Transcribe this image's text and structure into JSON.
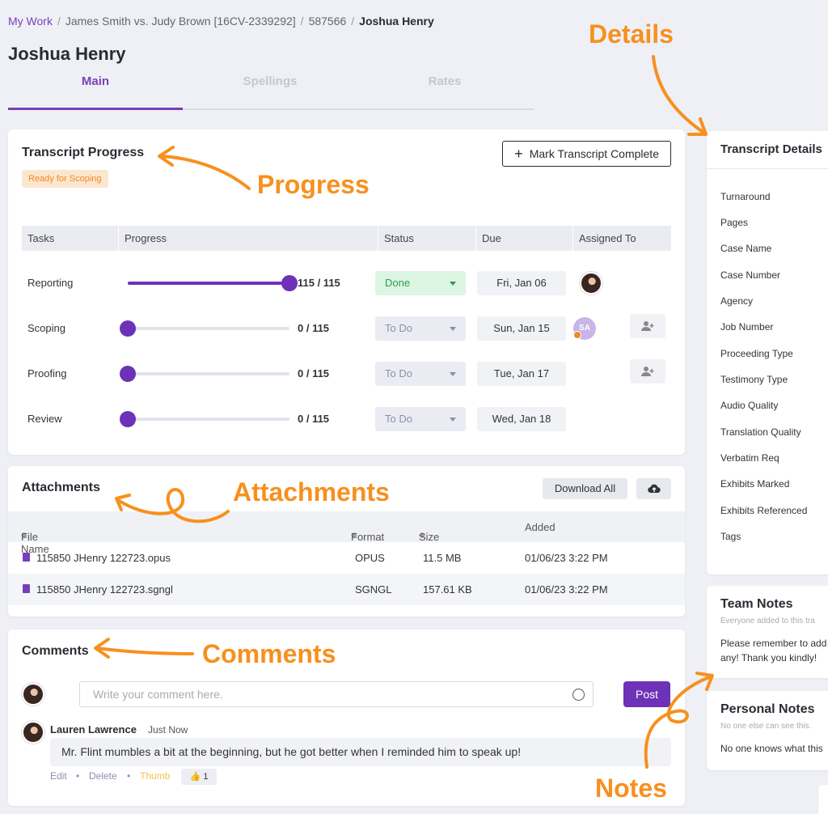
{
  "breadcrumb": {
    "items": [
      "My Work",
      "James Smith vs. Judy Brown [16CV-2339292]",
      "587566"
    ],
    "current": "Joshua Henry"
  },
  "page_title": "Joshua Henry",
  "tabs": [
    {
      "label": "Main",
      "active": true
    },
    {
      "label": "Spellings",
      "active": false
    },
    {
      "label": "Rates",
      "active": false
    }
  ],
  "progress": {
    "title": "Transcript Progress",
    "badge": "Ready for Scoping",
    "mark_complete_label": "Mark Transcript Complete",
    "columns": [
      "Tasks",
      "Progress",
      "Status",
      "Due",
      "Assigned To"
    ],
    "tasks": [
      {
        "name": "Reporting",
        "done": 115,
        "total": 115,
        "count_text": "115 / 115",
        "status": "Done",
        "due": "Fri, Jan 06",
        "assignee": "photo"
      },
      {
        "name": "Scoping",
        "done": 0,
        "total": 115,
        "count_text": "0 / 115",
        "status": "To Do",
        "due": "Sun, Jan 15",
        "assignee": "SA"
      },
      {
        "name": "Proofing",
        "done": 0,
        "total": 115,
        "count_text": "0 / 115",
        "status": "To Do",
        "due": "Tue, Jan 17",
        "assignee": ""
      },
      {
        "name": "Review",
        "done": 0,
        "total": 115,
        "count_text": "0 / 115",
        "status": "To Do",
        "due": "Wed, Jan 18",
        "assignee": ""
      }
    ]
  },
  "attachments": {
    "title": "Attachments",
    "download_all_label": "Download All",
    "columns": [
      "File Name",
      "Format",
      "Size",
      "Added"
    ],
    "files": [
      {
        "name": "115850 JHenry 122723.opus",
        "format": "OPUS",
        "size": "11.5 MB",
        "added": "01/06/23 3:22 PM"
      },
      {
        "name": "115850 JHenry 122723.sgngl",
        "format": "SGNGL",
        "size": "157.61 KB",
        "added": "01/06/23 3:22 PM"
      }
    ]
  },
  "comments": {
    "title": "Comments",
    "placeholder": "Write your comment here.",
    "post_label": "Post",
    "items": [
      {
        "author": "Lauren Lawrence",
        "time": "Just Now",
        "text": "Mr. Flint mumbles a bit at the beginning, but he got better when I reminded him to speak up!",
        "actions": {
          "edit": "Edit",
          "delete": "Delete",
          "thumb": "Thumb"
        },
        "thumb_count": "1"
      }
    ]
  },
  "details": {
    "title": "Transcript Details",
    "fields": [
      "Turnaround",
      "Pages",
      "Case Name",
      "Case Number",
      "Agency",
      "Job Number",
      "Proceeding Type",
      "Testimony Type",
      "Audio Quality",
      "Translation Quality",
      "Verbatim Req",
      "Exhibits Marked",
      "Exhibits Referenced",
      "Tags"
    ]
  },
  "team_notes": {
    "title": "Team Notes",
    "subtitle": "Everyone added to this tra",
    "line1": "Please remember to add",
    "line2": "any! Thank you kindly!"
  },
  "personal_notes": {
    "title": "Personal Notes",
    "subtitle": "No one else can see this.",
    "text": "No one knows what this"
  },
  "annotations": {
    "details": "Details",
    "progress": "Progress",
    "attachments": "Attachments",
    "comments": "Comments",
    "notes": "Notes",
    "color": "#f7901e"
  },
  "colors": {
    "accent": "#6d32b7",
    "done_bg": "#ddf5e3",
    "done_text": "#2a9d4b",
    "badge_bg": "#fde6cf",
    "badge_text": "#f08a24"
  }
}
